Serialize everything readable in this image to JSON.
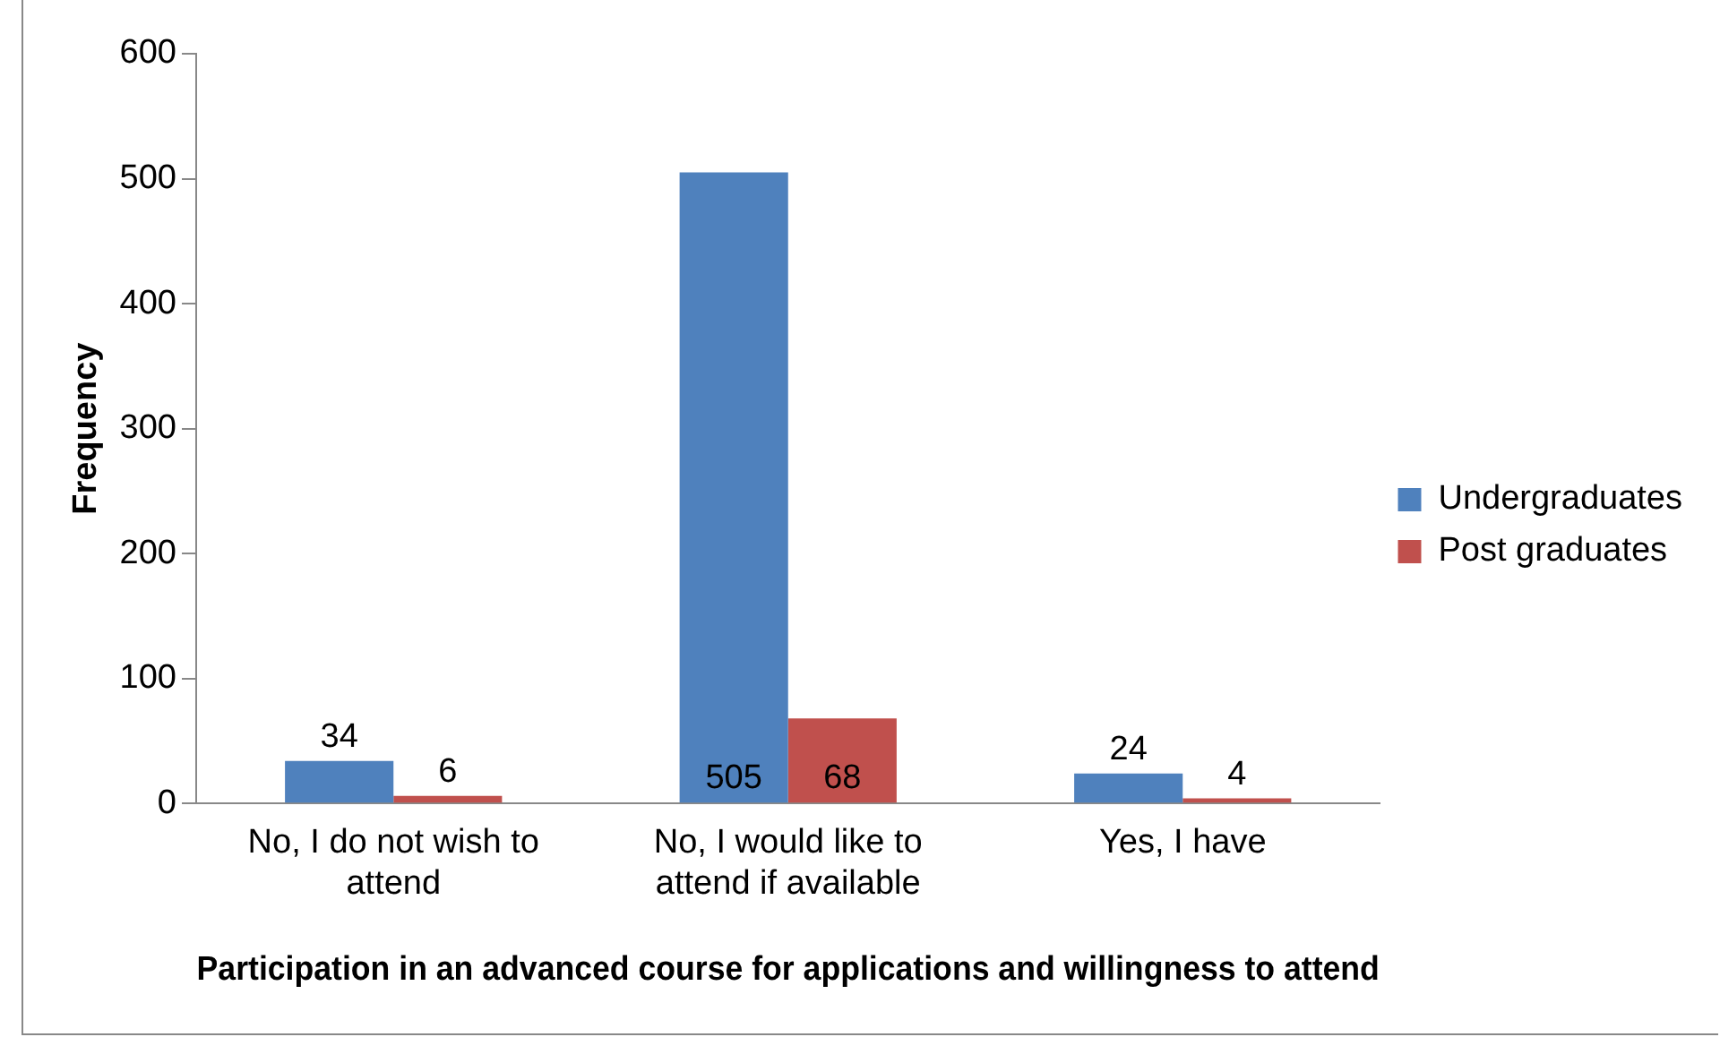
{
  "chart_data": {
    "type": "bar",
    "xlabel": "Participation in an advanced course for applications and willingness to attend",
    "ylabel": "Frequency",
    "categories": [
      "No, I do not wish to attend",
      "No, I would like to attend if available",
      "Yes, I have"
    ],
    "series": [
      {
        "name": "Undergraduates",
        "color": "#4f81bd",
        "values": [
          34,
          505,
          24
        ]
      },
      {
        "name": "Post graduates",
        "color": "#c0504d",
        "values": [
          6,
          68,
          4
        ]
      }
    ],
    "ylim": [
      0,
      600
    ],
    "yticks": [
      0,
      100,
      200,
      300,
      400,
      500,
      600
    ],
    "grid": false,
    "legend": "right",
    "data_labels": true
  }
}
